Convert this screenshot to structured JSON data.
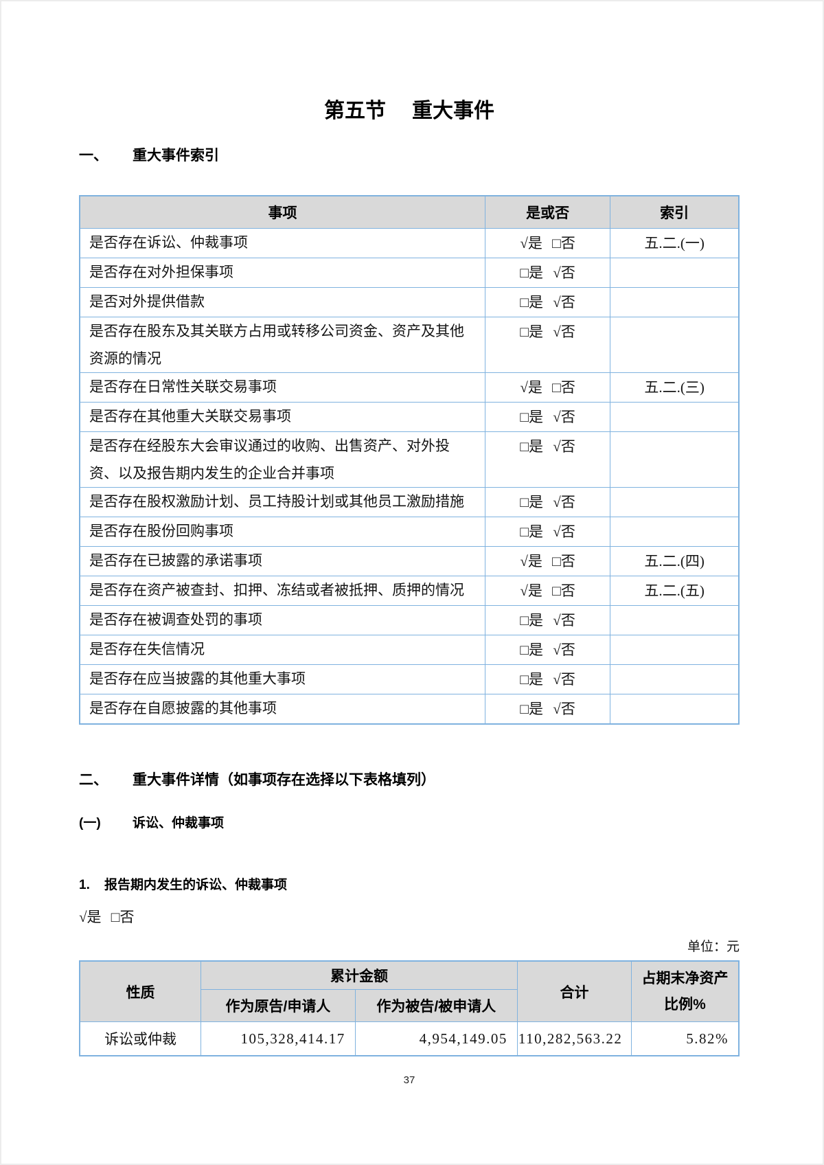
{
  "colors": {
    "table_border": "#7FB2DF",
    "header_bg": "#D9D9D9",
    "text": "#141414"
  },
  "doc": {
    "title_number": "第五节",
    "title_text": "重大事件",
    "page_number": "37"
  },
  "section1": {
    "number": "一、",
    "title": "重大事件索引",
    "table": {
      "headers": {
        "item": "事项",
        "choice": "是或否",
        "index": "索引"
      },
      "rows": [
        {
          "item": "是否存在诉讼、仲裁事项",
          "choice": "√是 □否",
          "index": "五.二.(一)"
        },
        {
          "item": "是否存在对外担保事项",
          "choice": "□是 √否",
          "index": ""
        },
        {
          "item": "是否对外提供借款",
          "choice": "□是 √否",
          "index": ""
        },
        {
          "item": "是否存在股东及其关联方占用或转移公司资金、资产及其他资源的情况",
          "choice": "□是 √否",
          "index": ""
        },
        {
          "item": "是否存在日常性关联交易事项",
          "choice": "√是 □否",
          "index": "五.二.(三)"
        },
        {
          "item": "是否存在其他重大关联交易事项",
          "choice": "□是 √否",
          "index": ""
        },
        {
          "item": "是否存在经股东大会审议通过的收购、出售资产、对外投资、以及报告期内发生的企业合并事项",
          "choice": "□是 √否",
          "index": ""
        },
        {
          "item": "是否存在股权激励计划、员工持股计划或其他员工激励措施",
          "choice": "□是 √否",
          "index": ""
        },
        {
          "item": "是否存在股份回购事项",
          "choice": "□是 √否",
          "index": ""
        },
        {
          "item": "是否存在已披露的承诺事项",
          "choice": "√是 □否",
          "index": "五.二.(四)"
        },
        {
          "item": "是否存在资产被查封、扣押、冻结或者被抵押、质押的情况",
          "choice": "√是 □否",
          "index": "五.二.(五)"
        },
        {
          "item": "是否存在被调查处罚的事项",
          "choice": "□是 √否",
          "index": ""
        },
        {
          "item": "是否存在失信情况",
          "choice": "□是 √否",
          "index": ""
        },
        {
          "item": "是否存在应当披露的其他重大事项",
          "choice": "□是 √否",
          "index": ""
        },
        {
          "item": "是否存在自愿披露的其他事项",
          "choice": "□是 √否",
          "index": ""
        }
      ]
    }
  },
  "section2": {
    "number": "二、",
    "title": "重大事件详情（如事项存在选择以下表格填列）",
    "subsection": {
      "number": "(一)",
      "title": "诉讼、仲裁事项",
      "item": {
        "number": "1.",
        "title": "报告期内发生的诉讼、仲裁事项",
        "choice": "√是 □否",
        "unit_label": "单位：元",
        "table": {
          "headers": {
            "nature": "性质",
            "cumulative": "累计金额",
            "plaintiff": "作为原告/申请人",
            "defendant": "作为被告/被申请人",
            "total": "合计",
            "ratio_line1": "占期末净资产",
            "ratio_line2": "比例%"
          },
          "rows": [
            {
              "nature": "诉讼或仲裁",
              "plaintiff": "105,328,414.17",
              "defendant": "4,954,149.05",
              "total": "110,282,563.22",
              "ratio": "5.82%"
            }
          ]
        }
      }
    }
  }
}
